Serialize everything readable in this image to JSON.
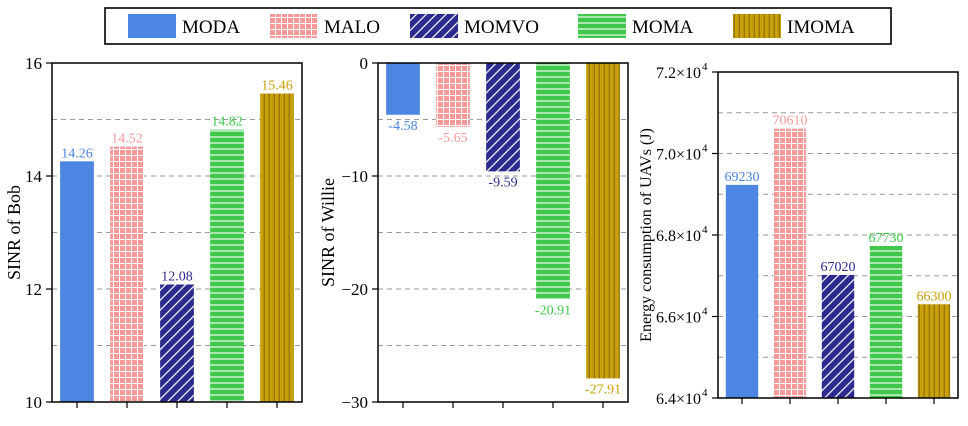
{
  "legend": {
    "items": [
      {
        "key": "MODA",
        "label": "MODA",
        "color": "#4c86e2",
        "pattern": "solid"
      },
      {
        "key": "MALO",
        "label": "MALO",
        "color": "#f59a98",
        "pattern": "grid"
      },
      {
        "key": "MOMVO",
        "label": "MOMVO",
        "color": "#2c2a8c",
        "pattern": "diagonal"
      },
      {
        "key": "MOMA",
        "label": "MOMA",
        "color": "#3fc84a",
        "pattern": "horizontal"
      },
      {
        "key": "IMOMA",
        "label": "IMOMA",
        "color": "#c8a00a",
        "pattern": "vertical"
      }
    ]
  },
  "chart_data": [
    {
      "type": "bar",
      "ylabel": "SINR of Bob",
      "categories": [
        "MODA",
        "MALO",
        "MOMVO",
        "MOMA",
        "IMOMA"
      ],
      "values": [
        14.26,
        14.52,
        12.08,
        14.82,
        15.46
      ],
      "value_labels": [
        "14.26",
        "14.52",
        "12.08",
        "14.82",
        "15.46"
      ],
      "ylim": [
        10,
        16
      ],
      "baseline": 10,
      "major_ticks": [
        10,
        12,
        14,
        16
      ],
      "tick_labels": [
        "10",
        "12",
        "14",
        "16"
      ],
      "grid": [
        11,
        12,
        13,
        14,
        15
      ]
    },
    {
      "type": "bar",
      "ylabel": "SINR of Willie",
      "categories": [
        "MODA",
        "MALO",
        "MOMVO",
        "MOMA",
        "IMOMA"
      ],
      "values": [
        -4.58,
        -5.65,
        -9.59,
        -20.91,
        -27.91
      ],
      "value_labels": [
        "-4.58",
        "-5.65",
        "-9.59",
        "-20.91",
        "-27.91"
      ],
      "ylim": [
        -30,
        0
      ],
      "baseline": 0,
      "major_ticks": [
        0,
        -10,
        -20,
        -30
      ],
      "tick_labels": [
        "0",
        "−10",
        "−20",
        "−30"
      ],
      "grid": [
        -5,
        -10,
        -15,
        -20,
        -25
      ]
    },
    {
      "type": "bar",
      "ylabel": "Energy consumption of UAVs (J)",
      "categories": [
        "MODA",
        "MALO",
        "MOMVO",
        "MOMA",
        "IMOMA"
      ],
      "values": [
        69230,
        70610,
        67020,
        67730,
        66300
      ],
      "value_labels": [
        "69230",
        "70610",
        "67020",
        "67730",
        "66300"
      ],
      "ylim": [
        64000,
        72000
      ],
      "baseline": 64000,
      "major_ticks": [
        64000,
        66000,
        68000,
        70000,
        72000
      ],
      "tick_labels": [
        {
          "mantissa": "6.4×10",
          "exp": "4"
        },
        {
          "mantissa": "6.6×10",
          "exp": "4"
        },
        {
          "mantissa": "6.8×10",
          "exp": "4"
        },
        {
          "mantissa": "7.0×10",
          "exp": "4"
        },
        {
          "mantissa": "7.2×10",
          "exp": "4"
        }
      ],
      "grid": [
        65000,
        66000,
        67000,
        68000,
        69000,
        70000,
        71000
      ]
    }
  ]
}
